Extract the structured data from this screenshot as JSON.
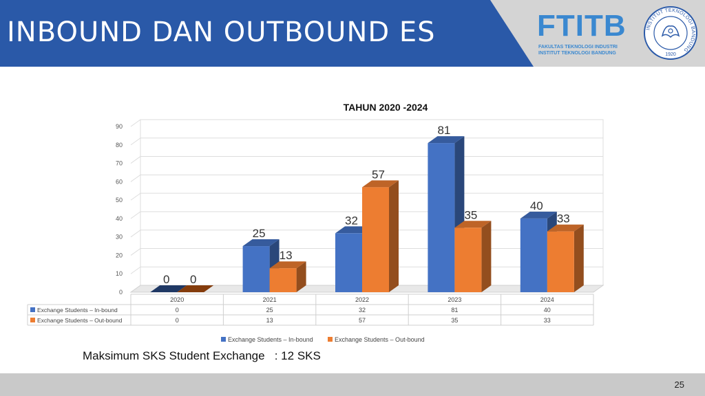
{
  "slide": {
    "title": "INBOUND DAN OUTBOUND ES",
    "note": "Maksimum SKS Student Exchange   : 12 SKS",
    "page_number": "25",
    "colors": {
      "header_blue": "#2a59a8",
      "inbound": "#4472c4",
      "outbound": "#ed7d31"
    }
  },
  "logo": {
    "wordmark": "FTITB",
    "line1": "FAKULTAS TEKNOLOGI INDUSTRI",
    "line2": "INSTITUT TEKNOLOGI BANDUNG"
  },
  "seal": {
    "text": "INSTITUT TEKNOLOGI BANDUNG",
    "year": "1920"
  },
  "chart_data": {
    "type": "bar",
    "title": "TAHUN 2020 -2024",
    "categories": [
      "2020",
      "2021",
      "2022",
      "2023",
      "2024"
    ],
    "series": [
      {
        "name": "Exchange Students – In-bound",
        "values": [
          0,
          25,
          32,
          81,
          40
        ],
        "color": "#4472c4"
      },
      {
        "name": "Exchange Students – Out-bound",
        "values": [
          0,
          13,
          57,
          35,
          33
        ],
        "color": "#ed7d31"
      }
    ],
    "yticks": [
      0,
      10,
      20,
      30,
      40,
      50,
      60,
      70,
      80,
      90
    ],
    "ylim": [
      0,
      90
    ],
    "grid": true,
    "legend": "bottom",
    "data_table": true
  }
}
